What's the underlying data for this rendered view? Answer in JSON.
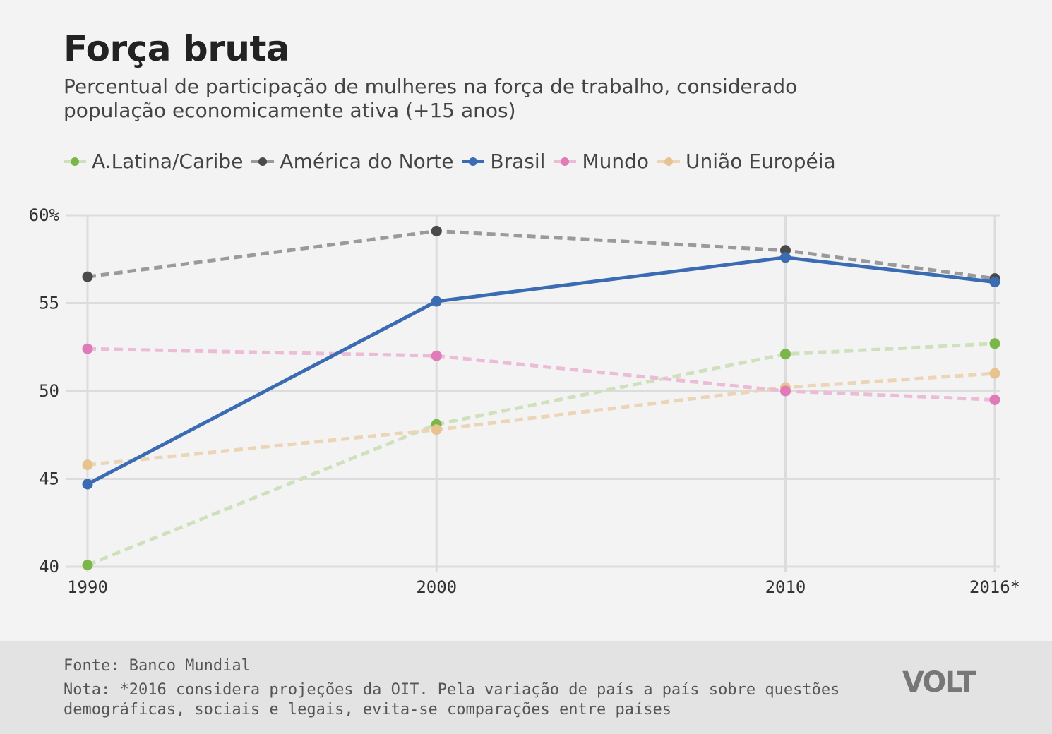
{
  "title": "Força bruta",
  "subtitle": "Percentual de participação de mulheres na força de trabalho, considerado população economicamente ativa (+15 anos)",
  "colors": {
    "background": "#f3f3f3",
    "grid": "#dcdcdc",
    "footer": "#e3e3e3"
  },
  "chart_data": {
    "type": "line",
    "categories": [
      "1990",
      "2000",
      "2010",
      "2016*"
    ],
    "yticks": [
      "40",
      "45",
      "50",
      "55",
      "60%"
    ],
    "ylim": [
      40,
      60
    ],
    "grid": true,
    "legend_position": "top-left",
    "series": [
      {
        "name": "A.Latina/Caribe",
        "values": [
          40.1,
          48.1,
          52.1,
          52.7
        ],
        "color": "#7ab648",
        "line_color": "#cfe0bd",
        "dashed": true
      },
      {
        "name": "América do Norte",
        "values": [
          56.5,
          59.1,
          58.0,
          56.4
        ],
        "color": "#4a4a4a",
        "line_color": "#9a9a9a",
        "dashed": true
      },
      {
        "name": "Brasil",
        "values": [
          44.7,
          55.1,
          57.6,
          56.2
        ],
        "color": "#3a6bb3",
        "line_color": "#3a6bb3",
        "dashed": false
      },
      {
        "name": "Mundo",
        "values": [
          52.4,
          52.0,
          50.0,
          49.5
        ],
        "color": "#e07ab8",
        "line_color": "#ecbcd7",
        "dashed": true
      },
      {
        "name": "União Européia",
        "values": [
          45.8,
          47.8,
          50.2,
          51.0
        ],
        "color": "#e9c38f",
        "line_color": "#ecd5b6",
        "dashed": true
      }
    ]
  },
  "footer": {
    "source": "Fonte: Banco Mundial",
    "note": "Nota: *2016 considera projeções da OIT. Pela variação de país a país sobre questões demográficas, sociais e legais, evita-se comparações entre países",
    "logo": "VOLT"
  }
}
